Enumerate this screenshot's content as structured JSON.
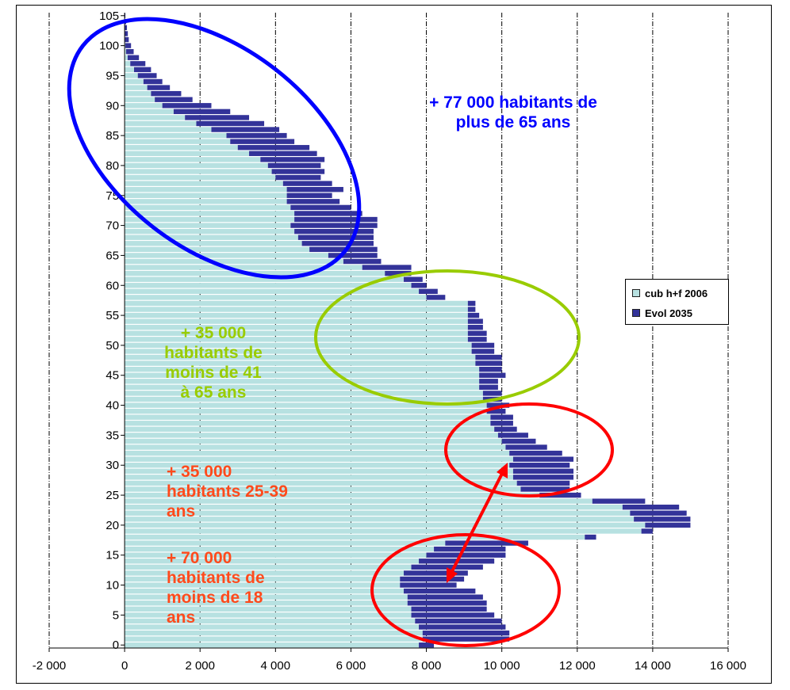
{
  "chart_data": {
    "type": "bar",
    "orientation": "horizontal",
    "stacked": true,
    "y_ticks": [
      "0",
      "5",
      "10",
      "15",
      "20",
      "25",
      "30",
      "35",
      "40",
      "45",
      "50",
      "55",
      "60",
      "65",
      "70",
      "75",
      "80",
      "85",
      "90",
      "95",
      "100",
      "105"
    ],
    "x_ticks": [
      "-2 000",
      "0",
      "2 000",
      "4 000",
      "6 000",
      "8 000",
      "10 000",
      "12 000",
      "14 000",
      "16 000"
    ],
    "xlim": [
      -2000,
      16000
    ],
    "ylim": [
      0,
      105
    ],
    "grid": "vertical dash-dot",
    "legend_position": "right",
    "series": [
      {
        "name": "cub h+f 2006",
        "color": "#b7e1e1",
        "ages": [
          0,
          1,
          2,
          3,
          4,
          5,
          6,
          7,
          8,
          9,
          10,
          11,
          12,
          13,
          14,
          15,
          16,
          17,
          18,
          19,
          20,
          21,
          22,
          23,
          24,
          25,
          26,
          27,
          28,
          29,
          30,
          31,
          32,
          33,
          34,
          35,
          36,
          37,
          38,
          39,
          40,
          41,
          42,
          43,
          44,
          45,
          46,
          47,
          48,
          49,
          50,
          51,
          52,
          53,
          54,
          55,
          56,
          57,
          58,
          59,
          60,
          61,
          62,
          63,
          64,
          65,
          66,
          67,
          68,
          69,
          70,
          71,
          72,
          73,
          74,
          75,
          76,
          77,
          78,
          79,
          80,
          81,
          82,
          83,
          84,
          85,
          86,
          87,
          88,
          89,
          90,
          91,
          92,
          93,
          94,
          95,
          96,
          97,
          98,
          99,
          100,
          101,
          102,
          103,
          104,
          105
        ],
        "values": [
          7800,
          7900,
          7900,
          7800,
          7700,
          7600,
          7600,
          7500,
          7500,
          7400,
          7300,
          7300,
          7400,
          7600,
          7800,
          8000,
          8200,
          8500,
          12200,
          13700,
          13800,
          13500,
          13400,
          13200,
          12400,
          11000,
          10500,
          10400,
          10300,
          10300,
          10200,
          10300,
          10200,
          10100,
          10000,
          9900,
          9800,
          9700,
          9700,
          9600,
          9600,
          9500,
          9500,
          9400,
          9400,
          9400,
          9400,
          9300,
          9300,
          9200,
          9200,
          9100,
          9100,
          9100,
          9100,
          9100,
          9100,
          9100,
          8000,
          7800,
          7600,
          7400,
          6900,
          6300,
          5800,
          5400,
          4900,
          4700,
          4600,
          4500,
          4400,
          4500,
          4500,
          4400,
          4300,
          4300,
          4300,
          4200,
          4000,
          3900,
          3800,
          3600,
          3300,
          3000,
          2800,
          2700,
          2300,
          1900,
          1600,
          1300,
          1000,
          800,
          700,
          600,
          500,
          350,
          250,
          150,
          80,
          40,
          20,
          10,
          5,
          2,
          1,
          0
        ]
      },
      {
        "name": "Evol 2035",
        "color": "#333399",
        "values": [
          400,
          2300,
          2300,
          2300,
          2300,
          2200,
          2000,
          2100,
          2000,
          1900,
          1500,
          1700,
          1700,
          1900,
          2000,
          2100,
          1900,
          2200,
          300,
          300,
          1200,
          1500,
          1500,
          1500,
          1400,
          1100,
          1300,
          1400,
          1600,
          1600,
          1600,
          1600,
          1400,
          1100,
          900,
          800,
          600,
          600,
          600,
          500,
          600,
          500,
          500,
          500,
          500,
          700,
          600,
          700,
          700,
          600,
          600,
          500,
          500,
          400,
          400,
          300,
          200,
          200,
          500,
          500,
          400,
          500,
          700,
          1300,
          1000,
          1300,
          1800,
          1900,
          2000,
          2100,
          2300,
          2200,
          1800,
          1600,
          1400,
          1200,
          1500,
          1300,
          1200,
          1400,
          1400,
          1700,
          1800,
          1900,
          1700,
          1600,
          1800,
          1800,
          1700,
          1500,
          1300,
          1000,
          800,
          600,
          500,
          500,
          450,
          400,
          300,
          200,
          150,
          100,
          80,
          60,
          40,
          20
        ]
      }
    ]
  },
  "legend": {
    "item1": "cub h+f 2006",
    "item2": "Evol 2035"
  },
  "annotations": {
    "over65": "+ 77 000 habitants de plus de 65 ans",
    "over65_line1": "+ 77 000 habitants de",
    "over65_line2": "plus de 65 ans",
    "mid_line1": "+ 35 000",
    "mid_line2": "habitants de",
    "mid_line3": "moins de 41",
    "mid_line4": "à 65 ans",
    "young_adults_line1": "+ 35 000",
    "young_adults_line2": "habitants 25-39",
    "young_adults_line3": "ans",
    "kids_line1": "+ 70 000",
    "kids_line2": "habitants de",
    "kids_line3": "moins de 18",
    "kids_line4": "ans",
    "colors": {
      "blue": "#0000ff",
      "green": "#99cc00",
      "red": "#ff0000",
      "orange": "#ff4a1c"
    }
  }
}
